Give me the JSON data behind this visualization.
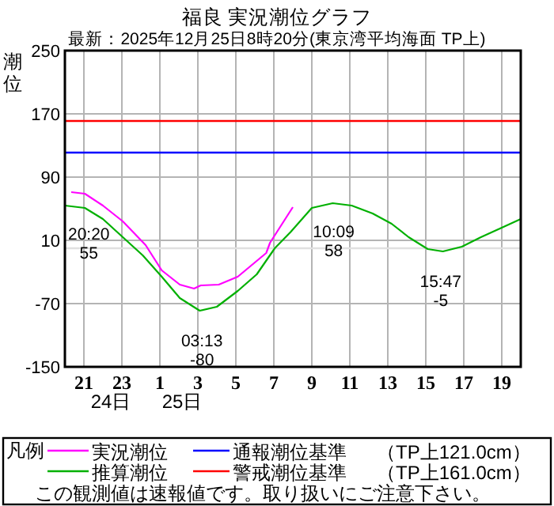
{
  "chart_data": {
    "type": "line",
    "title": "福良 実況潮位グラフ",
    "subtitle": "最新：2025年12月25日8時20分(東京湾平均海面 TP上)",
    "ylabel": "潮位",
    "legend_title": "凡例",
    "xlim": [
      "2025-12-24T20:00",
      "2025-12-25T20:00"
    ],
    "xticks": [
      {
        "value": "2025-12-24T21:00",
        "label": "21"
      },
      {
        "value": "2025-12-24T23:00",
        "label": "23"
      },
      {
        "value": "2025-12-25T01:00",
        "label": "1"
      },
      {
        "value": "2025-12-25T03:00",
        "label": "3"
      },
      {
        "value": "2025-12-25T05:00",
        "label": "5"
      },
      {
        "value": "2025-12-25T07:00",
        "label": "7"
      },
      {
        "value": "2025-12-25T09:00",
        "label": "9"
      },
      {
        "value": "2025-12-25T11:00",
        "label": "11"
      },
      {
        "value": "2025-12-25T13:00",
        "label": "13"
      },
      {
        "value": "2025-12-25T15:00",
        "label": "15"
      },
      {
        "value": "2025-12-25T17:00",
        "label": "17"
      },
      {
        "value": "2025-12-25T19:00",
        "label": "19"
      }
    ],
    "ylim": [
      -150,
      250
    ],
    "yticks": [
      -150,
      -70,
      10,
      90,
      170,
      250
    ],
    "grid": true,
    "legend": "bottom",
    "series": [
      {
        "name": "実況潮位",
        "color": "#ff00ff",
        "x": [
          "2025-12-24T20:20",
          "2025-12-24T21:03",
          "2025-12-24T22:00",
          "2025-12-24T23:03",
          "2025-12-25T00:15",
          "2025-12-25T01:06",
          "2025-12-25T02:03",
          "2025-12-25T02:48",
          "2025-12-25T03:09",
          "2025-12-25T04:06",
          "2025-12-25T05:06",
          "2025-12-25T06:06",
          "2025-12-25T06:36",
          "2025-12-25T06:48",
          "2025-12-25T07:36",
          "2025-12-25T08:00"
        ],
        "values": [
          71,
          69,
          54,
          34,
          4,
          -28,
          -46,
          -51,
          -47,
          -46,
          -36,
          -16,
          -6,
          7,
          37,
          52
        ]
      },
      {
        "name": "推算潮位",
        "color": "#00b000",
        "x": [
          "2025-12-24T20:00",
          "2025-12-24T21:03",
          "2025-12-24T22:00",
          "2025-12-24T23:03",
          "2025-12-25T00:06",
          "2025-12-25T01:06",
          "2025-12-25T02:03",
          "2025-12-25T03:06",
          "2025-12-25T04:00",
          "2025-12-25T05:06",
          "2025-12-25T06:06",
          "2025-12-25T07:03",
          "2025-12-25T07:54",
          "2025-12-25T09:00",
          "2025-12-25T10:06",
          "2025-12-25T11:06",
          "2025-12-25T12:12",
          "2025-12-25T13:12",
          "2025-12-25T14:06",
          "2025-12-25T15:06",
          "2025-12-25T15:54",
          "2025-12-25T16:54",
          "2025-12-25T17:54",
          "2025-12-25T19:00",
          "2025-12-25T20:00"
        ],
        "values": [
          54,
          51,
          37,
          14,
          -9,
          -36,
          -63,
          -79,
          -74,
          -54,
          -33,
          0,
          21,
          51,
          57,
          54,
          44,
          31,
          14,
          -1,
          -4,
          2,
          14,
          26,
          37
        ]
      }
    ],
    "ref_lines": [
      {
        "axis": "y",
        "value": 121,
        "label": "通報潮位基準",
        "color": "#0000ff"
      },
      {
        "axis": "y",
        "value": 161,
        "label": "警戒潮位基準",
        "color": "#ff0000"
      },
      {
        "axis": "y",
        "value": 0,
        "color": "#e0e0e0"
      }
    ],
    "annotations": [
      {
        "text": "20:20 55",
        "x": "2025-12-24T20:20",
        "y": 55
      },
      {
        "text": "03:13 -80",
        "x": "2025-12-25T03:13",
        "y": -80
      },
      {
        "text": "10:09 58",
        "x": "2025-12-25T10:09",
        "y": 58
      },
      {
        "text": "15:47 -5",
        "x": "2025-12-25T15:47",
        "y": -5
      },
      "24日",
      "25日",
      "（TP上121.0cm）",
      "（TP上161.0cm）",
      "この観測値は速報値です。取り扱いにご注意下さい。"
    ]
  }
}
